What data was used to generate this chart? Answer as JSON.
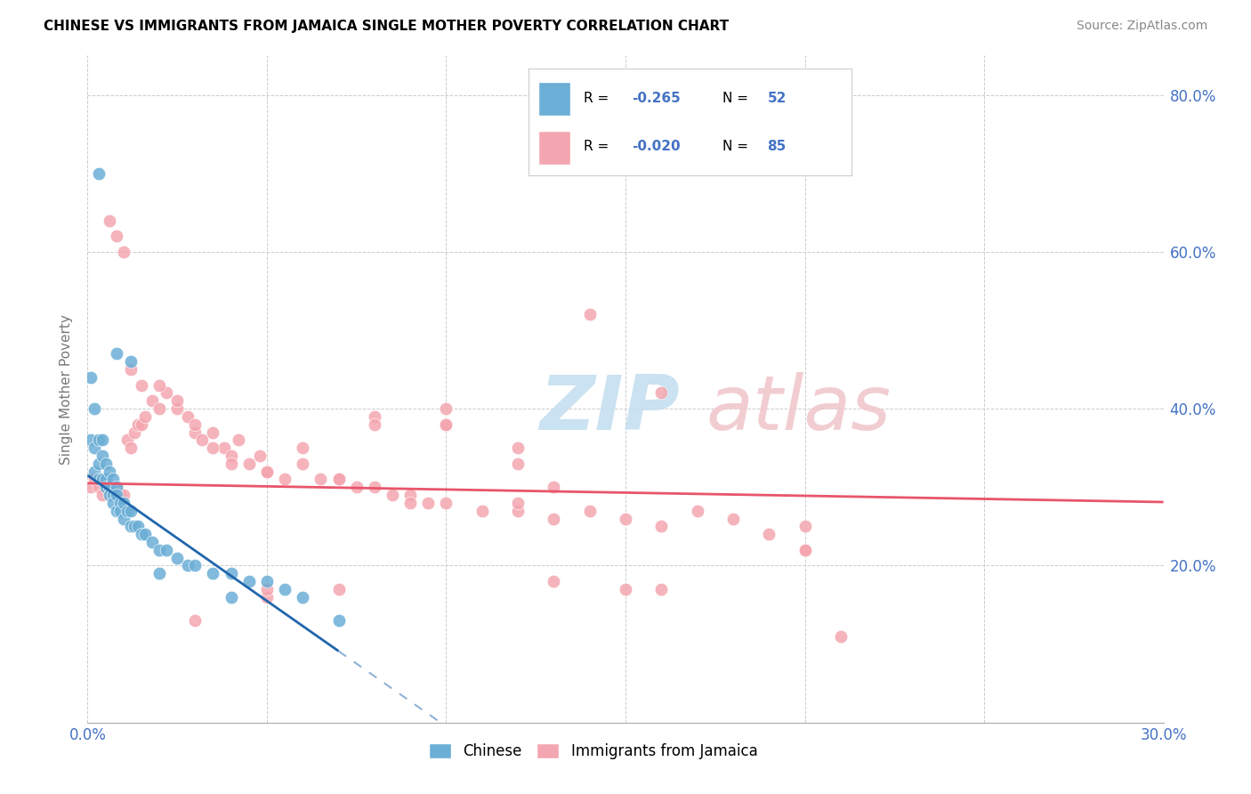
{
  "title": "CHINESE VS IMMIGRANTS FROM JAMAICA SINGLE MOTHER POVERTY CORRELATION CHART",
  "source": "Source: ZipAtlas.com",
  "ylabel": "Single Mother Poverty",
  "xlim": [
    0.0,
    0.3
  ],
  "ylim": [
    0.0,
    0.85
  ],
  "xticks": [
    0.0,
    0.05,
    0.1,
    0.15,
    0.2,
    0.25,
    0.3
  ],
  "xticklabels": [
    "0.0%",
    "",
    "",
    "",
    "",
    "",
    "30.0%"
  ],
  "yticks": [
    0.0,
    0.2,
    0.4,
    0.6,
    0.8
  ],
  "yticklabels": [
    "",
    "20.0%",
    "40.0%",
    "60.0%",
    "80.0%"
  ],
  "chinese_color": "#6baed6",
  "jamaica_color": "#f4a6b0",
  "trendline_chinese_color": "#2166ac",
  "trendline_jamaica_color": "#e8556a",
  "chinese_x": [
    0.001,
    0.001,
    0.002,
    0.002,
    0.002,
    0.003,
    0.003,
    0.003,
    0.004,
    0.004,
    0.004,
    0.005,
    0.005,
    0.005,
    0.006,
    0.006,
    0.006,
    0.007,
    0.007,
    0.007,
    0.008,
    0.008,
    0.008,
    0.009,
    0.009,
    0.01,
    0.01,
    0.011,
    0.012,
    0.012,
    0.013,
    0.014,
    0.015,
    0.016,
    0.018,
    0.02,
    0.022,
    0.025,
    0.028,
    0.03,
    0.035,
    0.04,
    0.045,
    0.05,
    0.055,
    0.06,
    0.07,
    0.003,
    0.008,
    0.012,
    0.02,
    0.04
  ],
  "chinese_y": [
    0.44,
    0.36,
    0.4,
    0.35,
    0.32,
    0.36,
    0.33,
    0.31,
    0.36,
    0.34,
    0.31,
    0.33,
    0.31,
    0.3,
    0.32,
    0.3,
    0.29,
    0.31,
    0.29,
    0.28,
    0.3,
    0.29,
    0.27,
    0.28,
    0.27,
    0.28,
    0.26,
    0.27,
    0.27,
    0.25,
    0.25,
    0.25,
    0.24,
    0.24,
    0.23,
    0.22,
    0.22,
    0.21,
    0.2,
    0.2,
    0.19,
    0.19,
    0.18,
    0.18,
    0.17,
    0.16,
    0.13,
    0.7,
    0.47,
    0.46,
    0.19,
    0.16
  ],
  "jamaica_x": [
    0.001,
    0.002,
    0.003,
    0.004,
    0.005,
    0.006,
    0.007,
    0.008,
    0.009,
    0.01,
    0.011,
    0.012,
    0.013,
    0.014,
    0.015,
    0.016,
    0.018,
    0.02,
    0.022,
    0.025,
    0.028,
    0.03,
    0.032,
    0.035,
    0.038,
    0.04,
    0.042,
    0.045,
    0.048,
    0.05,
    0.055,
    0.06,
    0.065,
    0.07,
    0.075,
    0.08,
    0.085,
    0.09,
    0.095,
    0.1,
    0.11,
    0.12,
    0.13,
    0.14,
    0.15,
    0.16,
    0.17,
    0.18,
    0.19,
    0.2,
    0.006,
    0.008,
    0.01,
    0.012,
    0.015,
    0.02,
    0.025,
    0.03,
    0.035,
    0.04,
    0.05,
    0.06,
    0.07,
    0.08,
    0.09,
    0.1,
    0.12,
    0.14,
    0.16,
    0.2,
    0.08,
    0.1,
    0.12,
    0.15,
    0.13,
    0.1,
    0.07,
    0.05,
    0.03,
    0.05,
    0.12,
    0.16,
    0.13,
    0.2,
    0.21
  ],
  "jamaica_y": [
    0.3,
    0.31,
    0.3,
    0.29,
    0.31,
    0.3,
    0.29,
    0.3,
    0.29,
    0.29,
    0.36,
    0.35,
    0.37,
    0.38,
    0.38,
    0.39,
    0.41,
    0.4,
    0.42,
    0.4,
    0.39,
    0.37,
    0.36,
    0.37,
    0.35,
    0.34,
    0.36,
    0.33,
    0.34,
    0.32,
    0.31,
    0.33,
    0.31,
    0.31,
    0.3,
    0.3,
    0.29,
    0.29,
    0.28,
    0.28,
    0.27,
    0.27,
    0.26,
    0.27,
    0.26,
    0.25,
    0.27,
    0.26,
    0.24,
    0.25,
    0.64,
    0.62,
    0.6,
    0.45,
    0.43,
    0.43,
    0.41,
    0.38,
    0.35,
    0.33,
    0.32,
    0.35,
    0.31,
    0.39,
    0.28,
    0.38,
    0.35,
    0.52,
    0.42,
    0.22,
    0.38,
    0.4,
    0.33,
    0.17,
    0.18,
    0.38,
    0.17,
    0.16,
    0.13,
    0.17,
    0.28,
    0.17,
    0.3,
    0.22,
    0.11
  ],
  "trendline_chinese_slope": -3.2,
  "trendline_chinese_intercept": 0.315,
  "trendline_chinese_solid_end": 0.07,
  "trendline_jamaica_slope": -0.08,
  "trendline_jamaica_intercept": 0.305
}
